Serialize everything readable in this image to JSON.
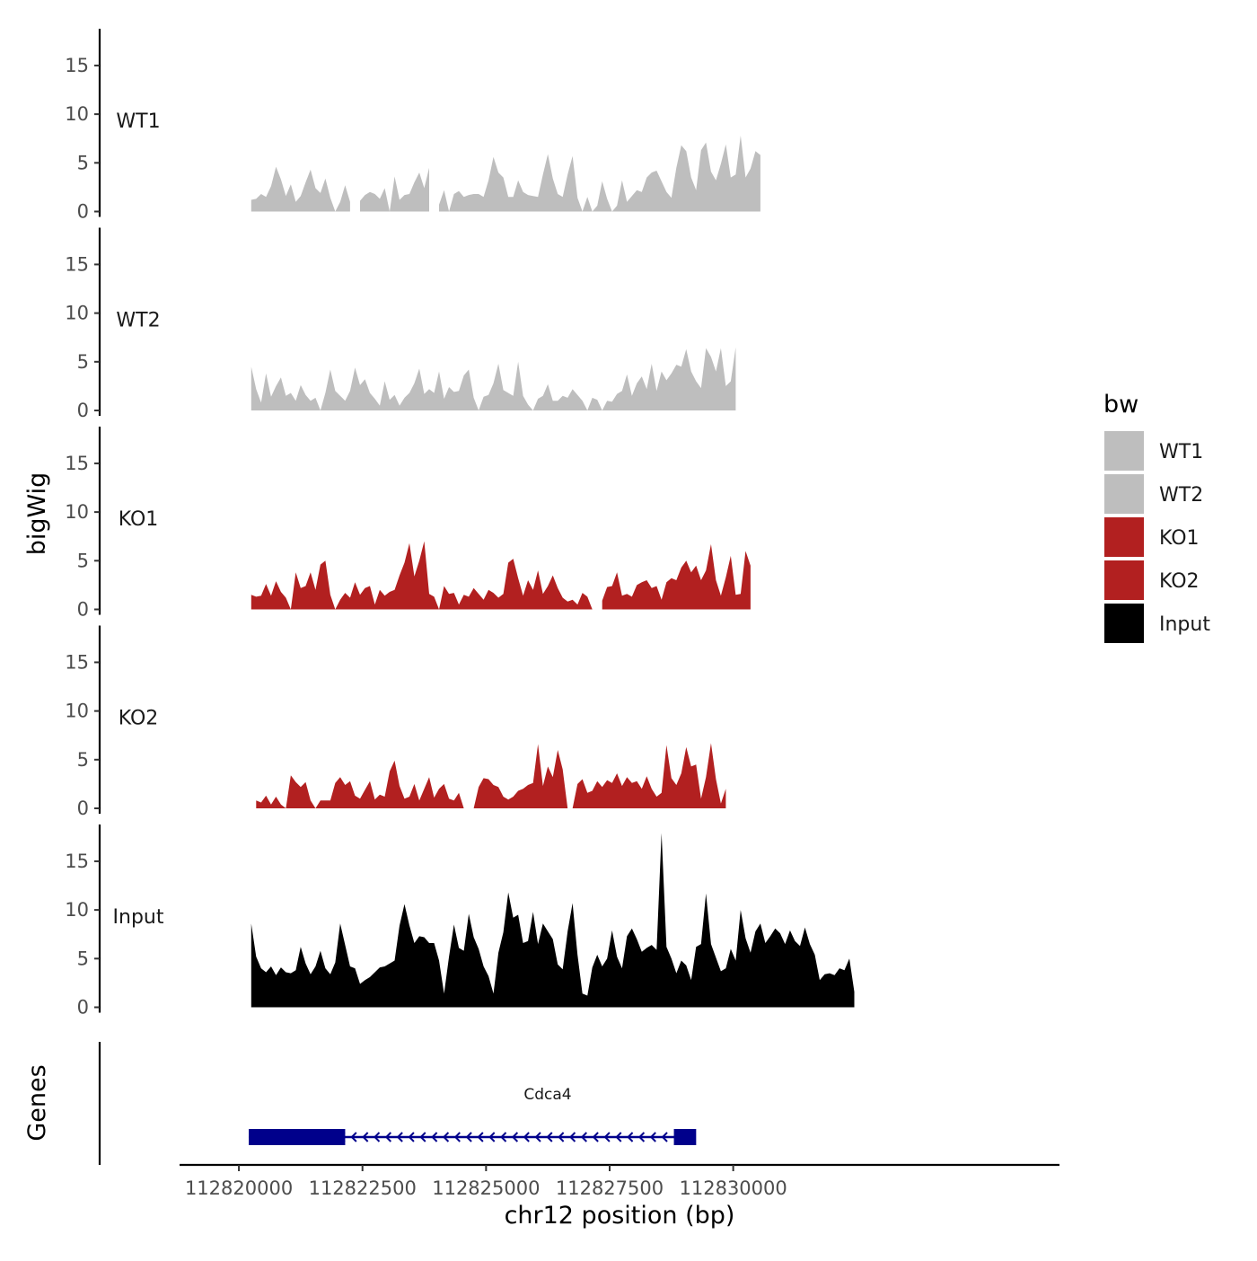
{
  "colors": {
    "WT": "#bebebe",
    "KO": "#b22020",
    "Input": "#000000",
    "gene": "#00008b",
    "axis": "#000000",
    "tick_text": "#4d4d4d"
  },
  "chart_data": {
    "type": "area",
    "title": "",
    "xlabel": "chr12 position (bp)",
    "ylabel_tracks": "bigWig",
    "ylabel_genes": "Genes",
    "xlim": [
      112818800,
      112836600
    ],
    "x_ticks": [
      112820000,
      112822500,
      112825000,
      112827500,
      112830000
    ],
    "x_tick_labels": [
      "112820000",
      "112822500",
      "112825000",
      "112827500",
      "112830000"
    ],
    "ylim": [
      0,
      18.5
    ],
    "y_ticks": [
      0,
      5,
      10,
      15
    ],
    "y_tick_labels": [
      "0",
      "5",
      "10",
      "15"
    ],
    "legend": {
      "title": "bw",
      "position": "right",
      "entries": [
        {
          "label": "WT1",
          "color": "#bebebe"
        },
        {
          "label": "WT2",
          "color": "#bebebe"
        },
        {
          "label": "KO1",
          "color": "#b22020"
        },
        {
          "label": "KO2",
          "color": "#b22020"
        },
        {
          "label": "Input",
          "color": "#000000"
        }
      ]
    },
    "x_start": 112820250,
    "x_step": 100,
    "series": [
      {
        "name": "WT1",
        "color": "#bebebe",
        "values": [
          1.2,
          1.3,
          1.8,
          1.5,
          2.6,
          4.6,
          3.3,
          1.6,
          2.8,
          1.0,
          1.6,
          3.0,
          4.3,
          2.4,
          1.9,
          3.4,
          1.4,
          0.0,
          1.0,
          2.7,
          1.0,
          null,
          1.1,
          1.7,
          2.0,
          1.8,
          1.3,
          2.4,
          0.0,
          3.6,
          1.2,
          1.7,
          1.8,
          3.0,
          4.0,
          2.4,
          4.5,
          null,
          0.7,
          2.2,
          0.0,
          1.8,
          2.1,
          1.5,
          1.7,
          1.8,
          1.8,
          1.5,
          3.2,
          5.6,
          4.0,
          3.5,
          1.5,
          1.5,
          3.2,
          2.0,
          1.7,
          1.6,
          1.5,
          3.8,
          5.9,
          3.4,
          1.8,
          1.5,
          3.8,
          5.7,
          1.4,
          0.0,
          1.5,
          0.0,
          0.6,
          3.1,
          1.3,
          0.0,
          0.6,
          3.2,
          1.0,
          1.6,
          2.2,
          2.0,
          3.5,
          4.0,
          4.2,
          3.1,
          2.0,
          1.4,
          4.5,
          6.8,
          6.2,
          3.5,
          2.2,
          6.3,
          7.1,
          4.1,
          3.2,
          4.9,
          6.9,
          3.5,
          3.8,
          7.8,
          3.5,
          4.4,
          6.2,
          5.8
        ]
      },
      {
        "name": "WT2",
        "color": "#bebebe",
        "values": [
          4.5,
          2.2,
          0.8,
          3.8,
          1.4,
          2.5,
          3.4,
          1.5,
          1.8,
          1.0,
          2.6,
          1.6,
          1.0,
          1.3,
          0.0,
          1.8,
          4.2,
          2.0,
          1.5,
          1.0,
          2.0,
          4.4,
          2.6,
          3.2,
          1.8,
          1.2,
          0.5,
          3.0,
          1.1,
          1.6,
          0.5,
          1.3,
          1.8,
          2.8,
          4.3,
          1.7,
          2.2,
          1.8,
          4.0,
          1.2,
          2.4,
          1.9,
          2.0,
          3.6,
          4.2,
          1.3,
          0.0,
          1.4,
          1.6,
          2.8,
          4.8,
          2.1,
          1.8,
          1.5,
          5.0,
          1.5,
          0.6,
          0.0,
          1.2,
          1.5,
          2.7,
          1.0,
          1.0,
          1.5,
          1.3,
          2.2,
          1.6,
          1.0,
          0.0,
          1.3,
          1.1,
          0.0,
          1.0,
          0.9,
          1.7,
          2.0,
          3.7,
          1.5,
          2.8,
          3.5,
          2.2,
          4.8,
          2.0,
          4.0,
          3.1,
          3.8,
          4.7,
          4.5,
          6.3,
          4.0,
          3.0,
          2.3,
          6.4,
          5.5,
          4.0,
          6.4,
          2.5,
          3.0,
          6.5
        ]
      },
      {
        "name": "KO1",
        "color": "#b22020",
        "values": [
          1.5,
          1.3,
          1.4,
          2.6,
          1.4,
          2.9,
          1.8,
          1.2,
          0.0,
          3.8,
          2.2,
          2.4,
          3.8,
          2.0,
          4.6,
          5.0,
          1.5,
          0.0,
          1.0,
          1.7,
          1.2,
          2.8,
          1.5,
          2.2,
          2.4,
          0.5,
          2.0,
          1.4,
          1.8,
          2.0,
          3.5,
          4.8,
          6.8,
          3.4,
          5.0,
          7.0,
          1.6,
          1.3,
          0.0,
          2.4,
          1.6,
          1.7,
          0.5,
          1.5,
          1.3,
          2.2,
          1.6,
          1.0,
          2.0,
          1.7,
          1.2,
          1.6,
          4.8,
          5.2,
          3.2,
          1.4,
          3.0,
          2.0,
          4.0,
          1.6,
          2.4,
          3.5,
          2.2,
          1.2,
          0.8,
          1.0,
          0.5,
          1.7,
          1.3,
          0.0,
          null,
          0.9,
          2.3,
          2.4,
          3.8,
          1.4,
          1.6,
          1.3,
          2.5,
          2.8,
          3.0,
          2.2,
          2.4,
          1.0,
          2.8,
          3.2,
          3.0,
          4.3,
          5.0,
          3.8,
          4.5,
          3.0,
          4.0,
          6.7,
          3.0,
          1.4,
          3.3,
          5.5,
          1.5,
          1.6,
          6.0,
          4.5
        ]
      },
      {
        "name": "KO2",
        "color": "#b22020",
        "values": [
          null,
          0.8,
          0.6,
          1.3,
          0.4,
          1.2,
          0.4,
          0.0,
          3.4,
          2.7,
          2.2,
          2.7,
          0.8,
          0.0,
          0.8,
          0.8,
          0.8,
          2.6,
          3.2,
          2.4,
          2.8,
          1.3,
          1.0,
          1.9,
          2.8,
          0.9,
          1.4,
          1.2,
          3.8,
          4.9,
          2.3,
          1.0,
          1.2,
          2.5,
          0.8,
          2.0,
          3.2,
          1.1,
          2.0,
          2.5,
          1.0,
          0.8,
          1.6,
          0.0,
          null,
          0.0,
          2.2,
          3.1,
          3.0,
          2.4,
          2.2,
          1.2,
          0.9,
          1.2,
          1.8,
          2.0,
          2.4,
          2.6,
          6.6,
          2.3,
          4.3,
          3.2,
          6.0,
          4.0,
          0.0,
          0.0,
          2.5,
          3.0,
          1.6,
          1.8,
          2.8,
          2.2,
          2.9,
          2.6,
          3.6,
          2.3,
          3.2,
          2.6,
          2.8,
          2.0,
          3.3,
          2.0,
          1.2,
          1.6,
          6.5,
          3.1,
          2.4,
          3.6,
          6.3,
          4.3,
          4.5,
          1.0,
          3.2,
          6.7,
          3.0,
          0.5,
          2.0
        ]
      },
      {
        "name": "Input",
        "color": "#000000",
        "values": [
          8.6,
          5.2,
          4.0,
          3.6,
          4.2,
          3.3,
          4.1,
          3.6,
          3.5,
          3.8,
          6.2,
          4.5,
          3.4,
          4.2,
          5.8,
          4.0,
          3.4,
          4.6,
          8.6,
          6.4,
          4.2,
          4.0,
          2.4,
          2.8,
          3.1,
          3.6,
          4.1,
          4.2,
          4.5,
          4.8,
          8.4,
          10.6,
          8.4,
          6.6,
          7.3,
          7.2,
          6.6,
          6.6,
          4.8,
          1.4,
          5.2,
          8.5,
          6.1,
          5.8,
          9.6,
          7.2,
          6.0,
          4.2,
          3.2,
          1.4,
          5.6,
          7.7,
          11.8,
          9.2,
          9.5,
          6.6,
          6.8,
          9.8,
          6.5,
          8.6,
          7.8,
          7.0,
          4.4,
          3.9,
          7.8,
          10.7,
          5.4,
          1.4,
          1.2,
          4.1,
          5.4,
          4.2,
          5.0,
          7.9,
          5.2,
          4.0,
          7.3,
          8.1,
          7.0,
          5.7,
          6.1,
          6.4,
          5.9,
          17.9,
          6.2,
          5.0,
          3.5,
          4.8,
          4.3,
          2.8,
          6.2,
          6.5,
          11.7,
          6.5,
          5.1,
          3.7,
          4.0,
          6.0,
          4.8,
          10.0,
          7.1,
          5.6,
          7.8,
          8.6,
          6.6,
          7.3,
          8.1,
          7.6,
          6.5,
          7.9,
          6.8,
          6.3,
          8.2,
          6.5,
          5.4,
          2.8,
          3.4,
          3.5,
          3.3,
          4.0,
          3.8,
          5.0,
          1.6
        ]
      }
    ],
    "genes": [
      {
        "name": "Cdca4",
        "strand": "-",
        "start": 112820200,
        "end": 112829050,
        "exons": [
          [
            112820200,
            112822150
          ],
          [
            112828800,
            112829250
          ]
        ],
        "arrow_spacing": 190
      }
    ]
  }
}
